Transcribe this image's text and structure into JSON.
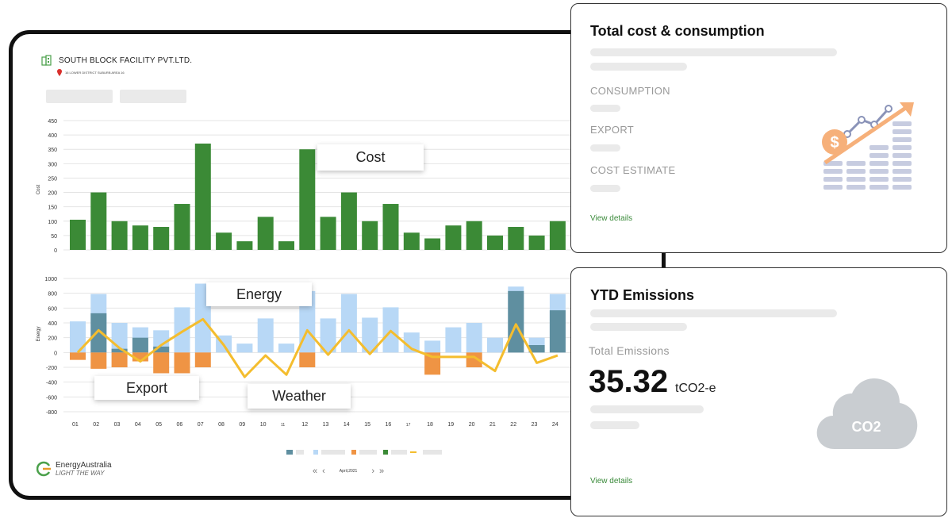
{
  "facility": {
    "name": "SOUTH BLOCK FACILITY PVT.LTD.",
    "address": "16 LOWER DISTRICT SUBURB AREA 16"
  },
  "colors": {
    "cost": "#3b8a36",
    "import_light": "#b8d8f6",
    "import_dark": "#5f8fa0",
    "export": "#ef9444",
    "weather": "#f4bd2e",
    "link": "#3a8a3a"
  },
  "callouts": {
    "cost": "Cost",
    "energy": "Energy",
    "export": "Export",
    "weather": "Weather"
  },
  "brand": {
    "name": "EnergyAustralia",
    "tagline": "LIGHT THE WAY"
  },
  "pager": {
    "label": "April,2021"
  },
  "cost_card": {
    "title": "Total cost & consumption",
    "consumption": "CONSUMPTION",
    "export": "EXPORT",
    "cost_estimate": "COST ESTIMATE",
    "view_details": "View details"
  },
  "emissions_card": {
    "title": "YTD  Emissions",
    "total_label": "Total Emissions",
    "value": "35.32",
    "unit": "tCO2-e",
    "cloud": "CO2",
    "view_details": "View details"
  },
  "chart_data": [
    {
      "type": "bar",
      "ylabel": "Cost",
      "yticks": [
        "450",
        "400",
        "350",
        "300",
        "250",
        "200",
        "150",
        "100",
        "50",
        "0"
      ],
      "ylim": [
        0,
        450
      ],
      "values": [
        105,
        200,
        100,
        85,
        80,
        160,
        370,
        60,
        30,
        115,
        30,
        350,
        115,
        200,
        100,
        160,
        60,
        40,
        85,
        100,
        50,
        80,
        50,
        100
      ],
      "grid": true
    },
    {
      "type": "bar",
      "ylabel": "Energy",
      "yticks": [
        "1000",
        "800",
        "600",
        "400",
        "200",
        "0",
        "-200",
        "-400",
        "-600",
        "-800"
      ],
      "ylim": [
        -800,
        1000
      ],
      "categories": [
        "01",
        "02",
        "03",
        "04",
        "05",
        "06",
        "07",
        "08",
        "09",
        "10",
        "11",
        "12",
        "13",
        "14",
        "15",
        "16",
        "17",
        "18",
        "19",
        "20",
        "21",
        "22",
        "23",
        "24"
      ],
      "series": [
        {
          "values": [
            420,
            790,
            400,
            340,
            300,
            610,
            930,
            230,
            120,
            460,
            120,
            830,
            460,
            790,
            470,
            610,
            270,
            160,
            340,
            400,
            200,
            890,
            200,
            790
          ]
        },
        {
          "values": [
            0,
            530,
            50,
            200,
            80,
            0,
            0,
            0,
            0,
            0,
            0,
            0,
            0,
            0,
            0,
            0,
            0,
            0,
            0,
            0,
            0,
            830,
            100,
            570
          ]
        },
        {
          "values": [
            -100,
            -220,
            -200,
            -120,
            -280,
            -280,
            -200,
            0,
            0,
            0,
            0,
            -200,
            0,
            0,
            0,
            0,
            0,
            -300,
            0,
            -200,
            0,
            0,
            0,
            0
          ]
        },
        {
          "values": [
            0,
            300,
            60,
            -120,
            100,
            280,
            450,
            100,
            -330,
            -40,
            -300,
            300,
            -30,
            300,
            -20,
            290,
            50,
            -60,
            -60,
            -60,
            -250,
            380,
            -140,
            -40
          ]
        }
      ],
      "grid": true
    }
  ]
}
